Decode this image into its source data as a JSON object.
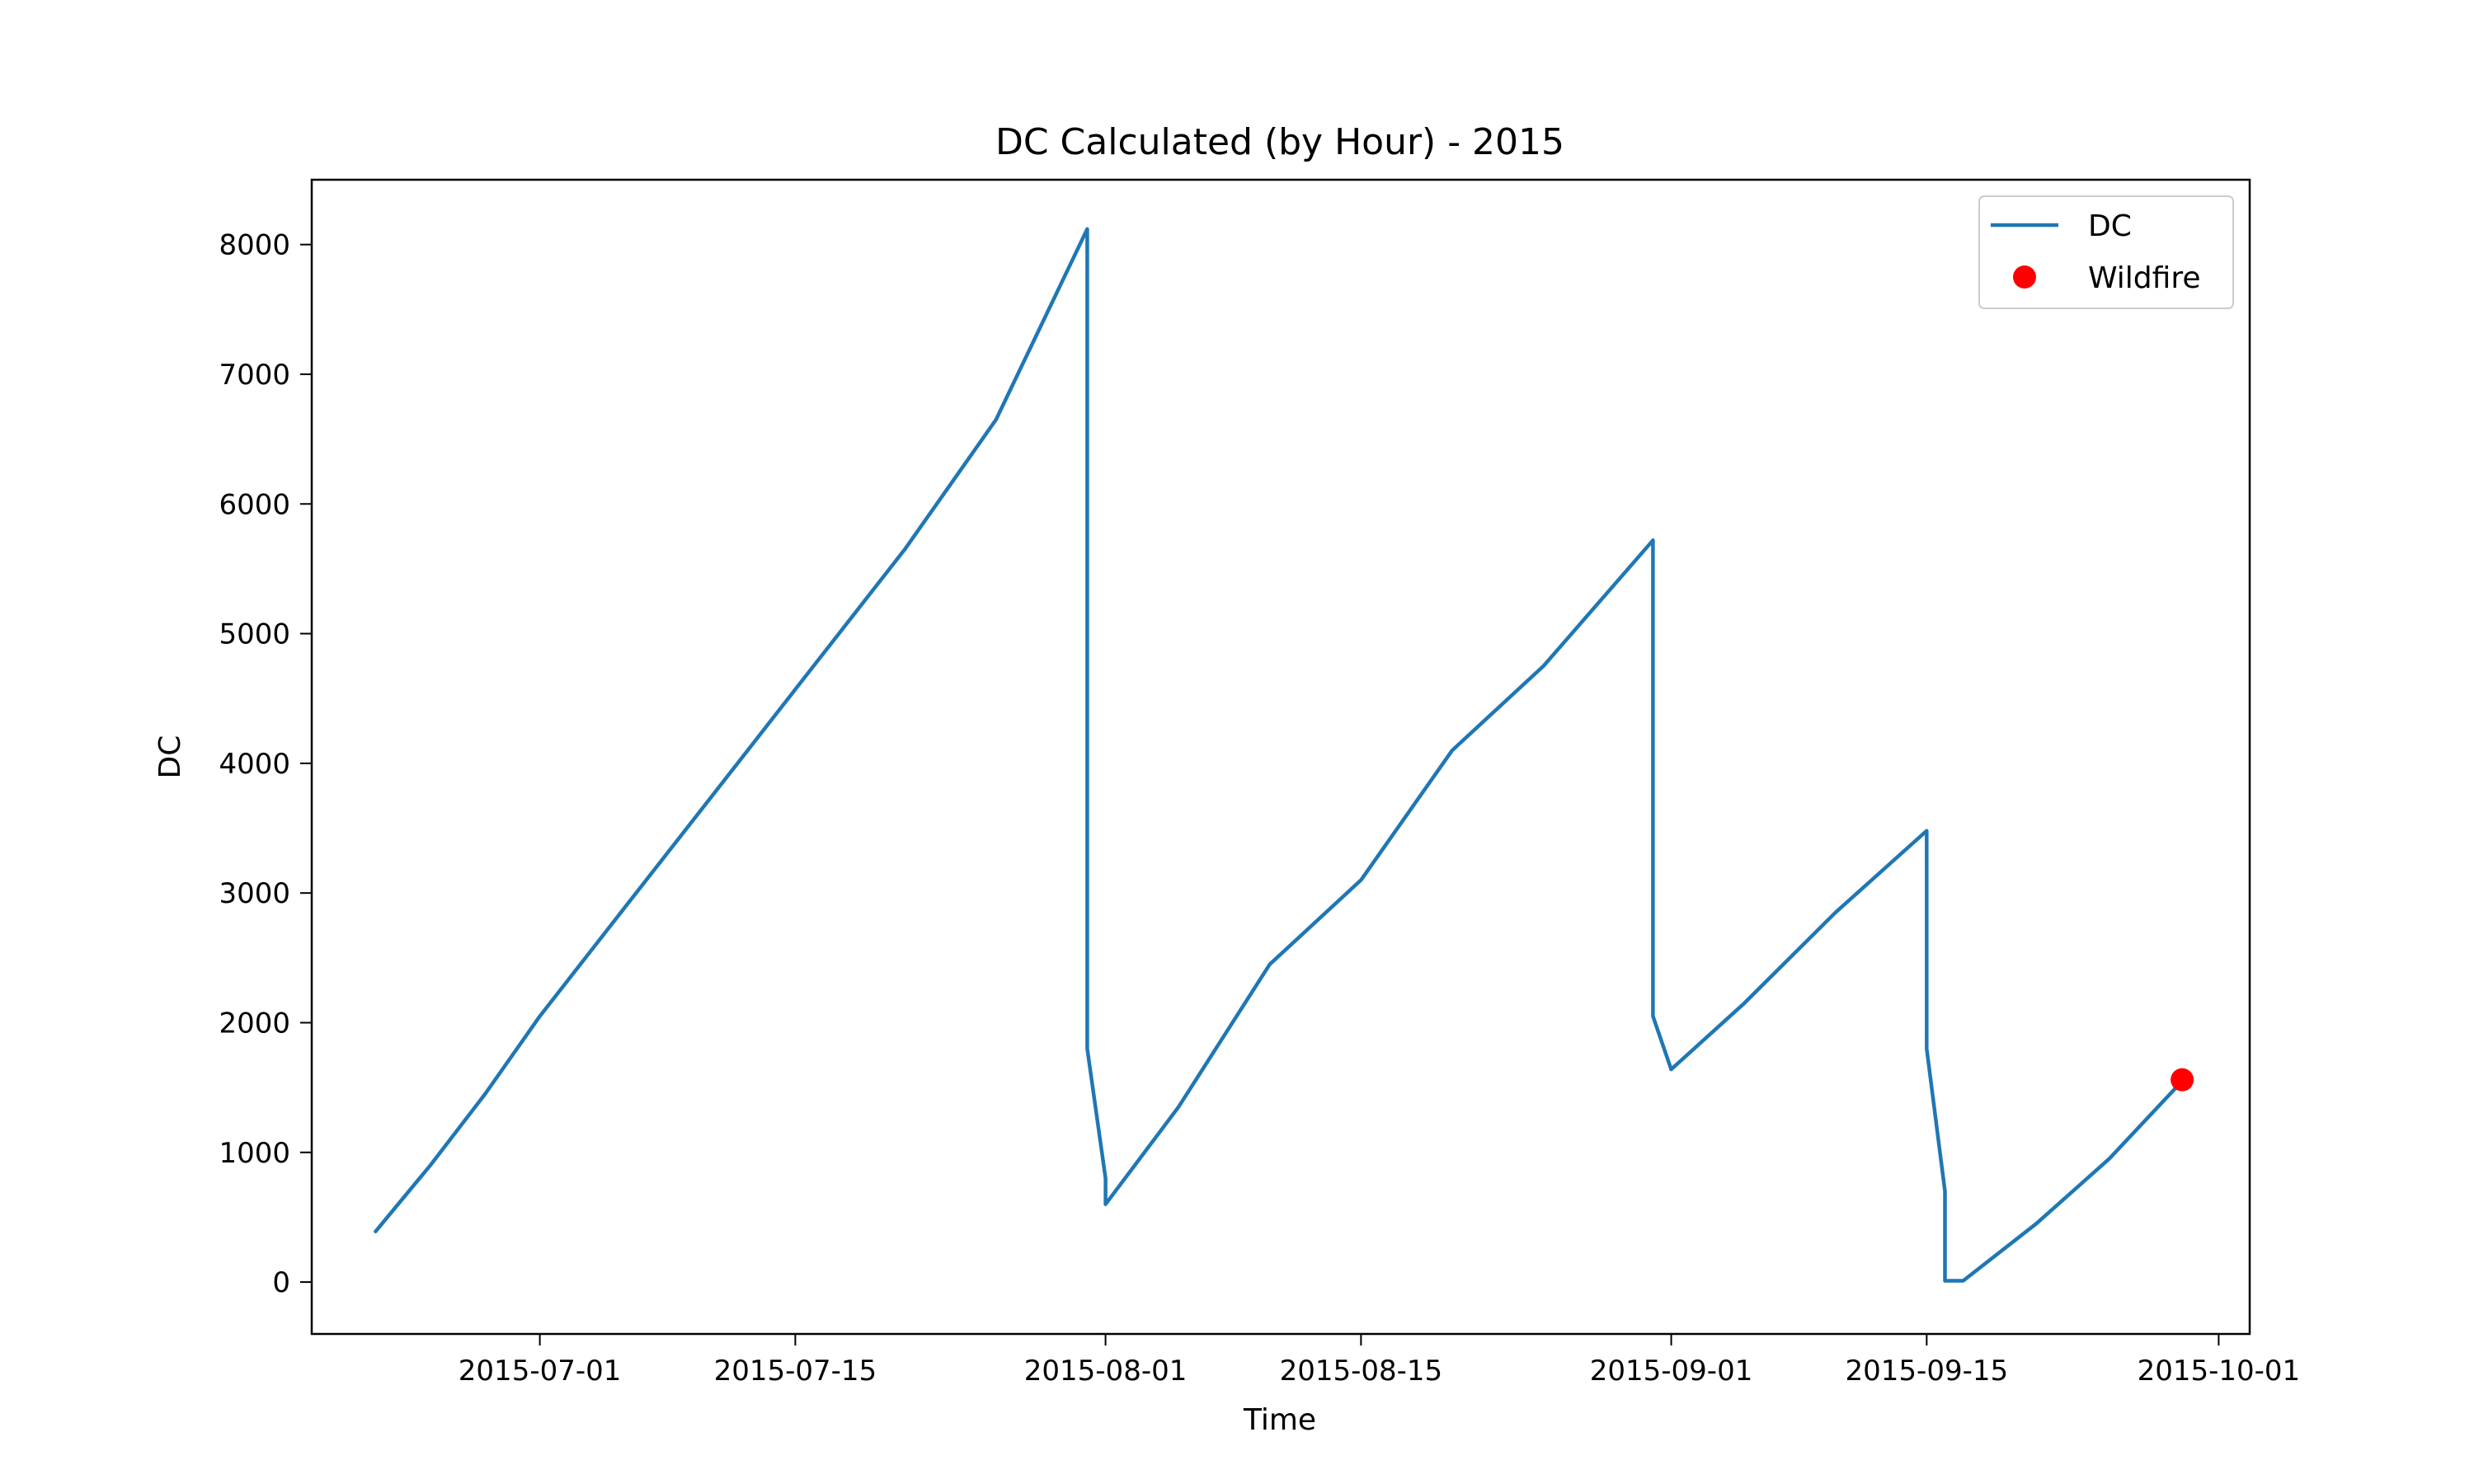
{
  "chart_data": {
    "type": "line",
    "title": "DC Calculated (by Hour) - 2015",
    "xlabel": "Time",
    "ylabel": "DC",
    "xlim": [
      "2015-06-20",
      "2015-10-01"
    ],
    "ylim": [
      -400,
      8500
    ],
    "x_ticks": [
      "2015-07-01",
      "2015-07-15",
      "2015-08-01",
      "2015-08-15",
      "2015-09-01",
      "2015-09-15",
      "2015-10-01"
    ],
    "y_ticks": [
      0,
      1000,
      2000,
      3000,
      4000,
      5000,
      6000,
      7000,
      8000
    ],
    "legend_position": "top-right",
    "grid": false,
    "series": [
      {
        "name": "DC",
        "kind": "line",
        "color": "#1f77b4",
        "points": [
          {
            "x": "2015-06-22",
            "y": 390
          },
          {
            "x": "2015-06-25",
            "y": 900
          },
          {
            "x": "2015-06-28",
            "y": 1450
          },
          {
            "x": "2015-07-01",
            "y": 2050
          },
          {
            "x": "2015-07-06",
            "y": 2950
          },
          {
            "x": "2015-07-11",
            "y": 3850
          },
          {
            "x": "2015-07-16",
            "y": 4750
          },
          {
            "x": "2015-07-21",
            "y": 5650
          },
          {
            "x": "2015-07-26",
            "y": 6650
          },
          {
            "x": "2015-07-31",
            "y": 8120
          },
          {
            "x": "2015-07-31",
            "y": 1800
          },
          {
            "x": "2015-08-01",
            "y": 800
          },
          {
            "x": "2015-08-01",
            "y": 600
          },
          {
            "x": "2015-08-05",
            "y": 1350
          },
          {
            "x": "2015-08-10",
            "y": 2450
          },
          {
            "x": "2015-08-15",
            "y": 3100
          },
          {
            "x": "2015-08-20",
            "y": 4100
          },
          {
            "x": "2015-08-25",
            "y": 4750
          },
          {
            "x": "2015-08-31",
            "y": 5720
          },
          {
            "x": "2015-08-31",
            "y": 2050
          },
          {
            "x": "2015-09-01",
            "y": 1640
          },
          {
            "x": "2015-09-05",
            "y": 2150
          },
          {
            "x": "2015-09-10",
            "y": 2850
          },
          {
            "x": "2015-09-15",
            "y": 3480
          },
          {
            "x": "2015-09-15",
            "y": 1800
          },
          {
            "x": "2015-09-16",
            "y": 700
          },
          {
            "x": "2015-09-16",
            "y": 10
          },
          {
            "x": "2015-09-17",
            "y": 10
          },
          {
            "x": "2015-09-21",
            "y": 450
          },
          {
            "x": "2015-09-25",
            "y": 950
          },
          {
            "x": "2015-09-29",
            "y": 1550
          }
        ]
      },
      {
        "name": "Wildfire",
        "kind": "scatter",
        "color": "#ff0000",
        "points": [
          {
            "x": "2015-09-29",
            "y": 1560
          }
        ]
      }
    ]
  }
}
